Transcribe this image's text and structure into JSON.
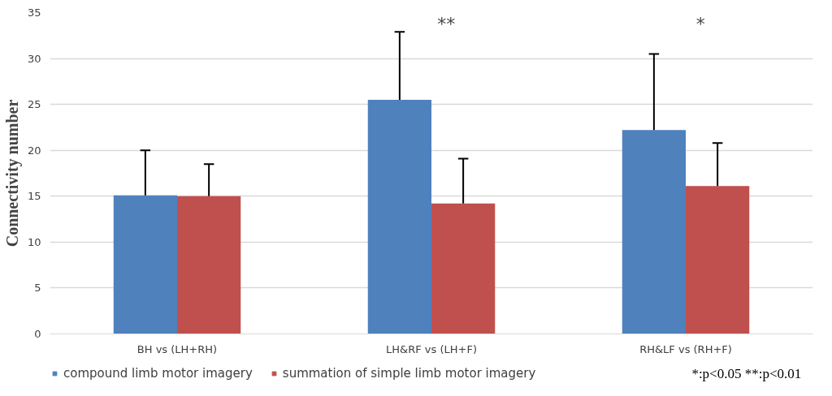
{
  "chart_data": {
    "type": "bar",
    "ylabel": "Connectivity number",
    "categories": [
      "BH vs (LH+RH)",
      "LH&RF vs (LH+F)",
      "RH&LF vs (RH+F)"
    ],
    "series": [
      {
        "name": "compound limb motor imagery",
        "color": "#4f81bd",
        "values": [
          15.1,
          25.5,
          22.2
        ],
        "errors": [
          [
            15.1,
            20.0
          ],
          [
            25.5,
            32.9
          ],
          [
            22.2,
            30.5
          ]
        ]
      },
      {
        "name": "summation of simple limb motor imagery",
        "color": "#c0504d",
        "values": [
          15.0,
          14.2,
          16.1
        ],
        "errors": [
          [
            15.0,
            18.5
          ],
          [
            14.2,
            19.1
          ],
          [
            16.1,
            20.8
          ]
        ]
      }
    ],
    "ylim": [
      0,
      35
    ],
    "yticks": [
      0,
      5,
      10,
      15,
      20,
      25,
      30,
      35
    ],
    "grid": "y",
    "legend": "bottom",
    "annotations": [
      "**",
      "*",
      "*:p<0.05  **:p<0.01"
    ]
  }
}
